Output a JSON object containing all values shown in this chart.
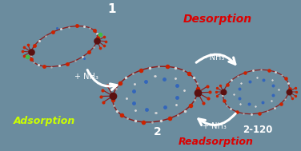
{
  "background_color": "#6b8c9e",
  "label_1": "1",
  "label_2": "2",
  "label_3": "2-120",
  "adsorption_text": "Adsorption",
  "desorption_text": "Desorption",
  "readsorption_text": "Readsorption",
  "adsorption_color": "#ccff00",
  "desorption_color": "#dd0000",
  "readsorption_color": "#dd0000",
  "arrow_color": "#ffffff",
  "nh3_plus": "+ NH₃",
  "nh3_minus": "- NH₃",
  "nh3_plus2": "+ NH₃",
  "label_color": "#ffffff",
  "metal_color": "#5a1010",
  "red_color": "#cc2200",
  "white_color": "#d8d8d8",
  "blue_color": "#3366bb",
  "green_color": "#44bb44",
  "bond_color": "#8b2020",
  "fig_width": 3.76,
  "fig_height": 1.89,
  "dpi": 100
}
